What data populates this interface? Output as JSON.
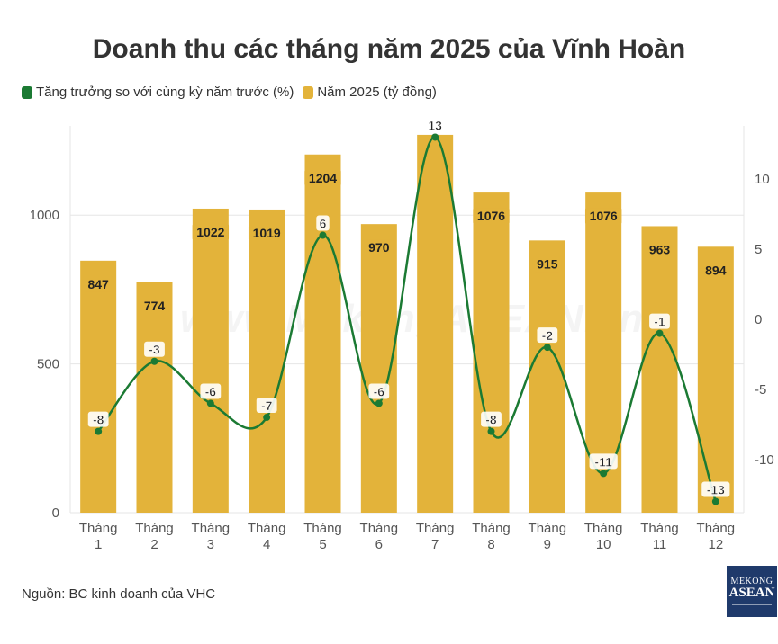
{
  "title": "Doanh thu các tháng năm 2025 của Vĩnh Hoàn",
  "legend": {
    "growth_label": "Tăng trưởng so với cùng kỳ năm trước (%)",
    "revenue_label": "Năm 2025 (tỷ đồng)"
  },
  "source": "Nguồn: BC kinh doanh của VHC",
  "watermark": "www.MekongASEAN.vn",
  "brand": {
    "line1": "MEKONG",
    "line2": "ASEAN"
  },
  "colors": {
    "bar": "#E3B33A",
    "line": "#1B7A33",
    "grid": "#E6E6E6",
    "label_bg": "#ffffff"
  },
  "chart_data": {
    "type": "bar",
    "categories": [
      [
        "Tháng",
        "1"
      ],
      [
        "Tháng",
        "2"
      ],
      [
        "Tháng",
        "3"
      ],
      [
        "Tháng",
        "4"
      ],
      [
        "Tháng",
        "5"
      ],
      [
        "Tháng",
        "6"
      ],
      [
        "Tháng",
        "7"
      ],
      [
        "Tháng",
        "8"
      ],
      [
        "Tháng",
        "9"
      ],
      [
        "Tháng",
        "10"
      ],
      [
        "Tháng",
        "11"
      ],
      [
        "Tháng",
        "12"
      ]
    ],
    "series": [
      {
        "name": "Năm 2025 (tỷ đồng)",
        "type": "bar",
        "axis": "left",
        "values": [
          847,
          774,
          1022,
          1019,
          1204,
          970,
          1270,
          1076,
          915,
          1076,
          963,
          894
        ],
        "labels": [
          "847",
          "774",
          "1022",
          "1019",
          "1204",
          "970",
          "",
          "1076",
          "915",
          "1076",
          "963",
          "894"
        ]
      },
      {
        "name": "Tăng trưởng so với cùng kỳ năm trước (%)",
        "type": "line",
        "axis": "right",
        "values": [
          -8,
          -3,
          -6,
          -7,
          6,
          -6,
          13,
          -8,
          -2,
          -11,
          -1,
          -13
        ]
      }
    ],
    "left_axis": {
      "ticks": [
        0,
        500,
        1000
      ],
      "ylim": [
        0,
        1300
      ]
    },
    "right_axis": {
      "ticks": [
        -10,
        -5,
        0,
        5,
        10
      ],
      "ylim": [
        -13.8,
        13.8
      ]
    },
    "grid": true,
    "legend_position": "top-left"
  }
}
